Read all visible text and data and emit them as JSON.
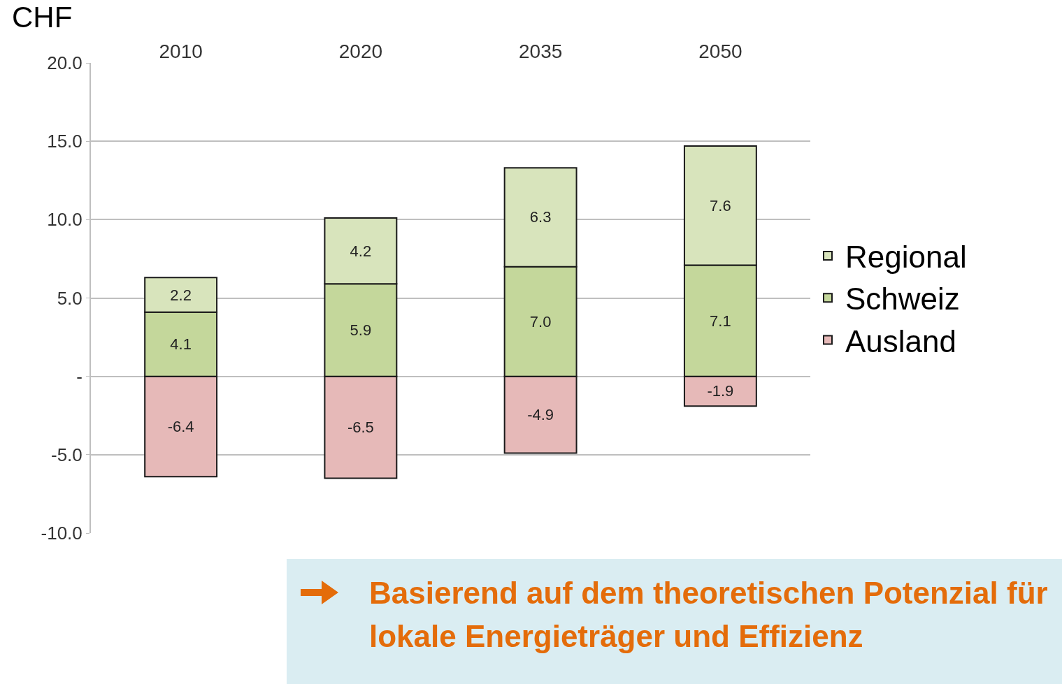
{
  "chart_data": {
    "type": "bar",
    "ylabel": "CHF",
    "categories": [
      "2010",
      "2020",
      "2035",
      "2050"
    ],
    "stacked": true,
    "series": [
      {
        "name": "Ausland",
        "color": "#e6b9b8",
        "values": [
          -6.4,
          -6.5,
          -4.9,
          -1.9
        ],
        "value_labels": [
          "-6.4",
          "-6.5",
          "-4.9",
          "-1.9"
        ]
      },
      {
        "name": "Schweiz",
        "color": "#c4d79b",
        "values": [
          4.1,
          5.9,
          7.0,
          7.1
        ],
        "value_labels": [
          "4.1",
          "5.9",
          "7.0",
          "7.1"
        ]
      },
      {
        "name": "Regional",
        "color": "#d8e4bc",
        "values": [
          2.2,
          4.2,
          6.3,
          7.6
        ],
        "value_labels": [
          "2.2",
          "4.2",
          "6.3",
          "7.6"
        ]
      }
    ],
    "ylim": [
      -10,
      20
    ],
    "yticks": [
      {
        "value": -10,
        "label": "-10.0"
      },
      {
        "value": -5,
        "label": "-5.0"
      },
      {
        "value": 0,
        "label": "-"
      },
      {
        "value": 5,
        "label": "5.0"
      },
      {
        "value": 10,
        "label": "10.0"
      },
      {
        "value": 15,
        "label": "15.0"
      },
      {
        "value": 20,
        "label": "20.0"
      }
    ],
    "grid": "y",
    "legend": "right",
    "annotations": [
      "Basierend auf dem theoretischen Potenzial für lokale Energieträger und Effizienz"
    ]
  }
}
